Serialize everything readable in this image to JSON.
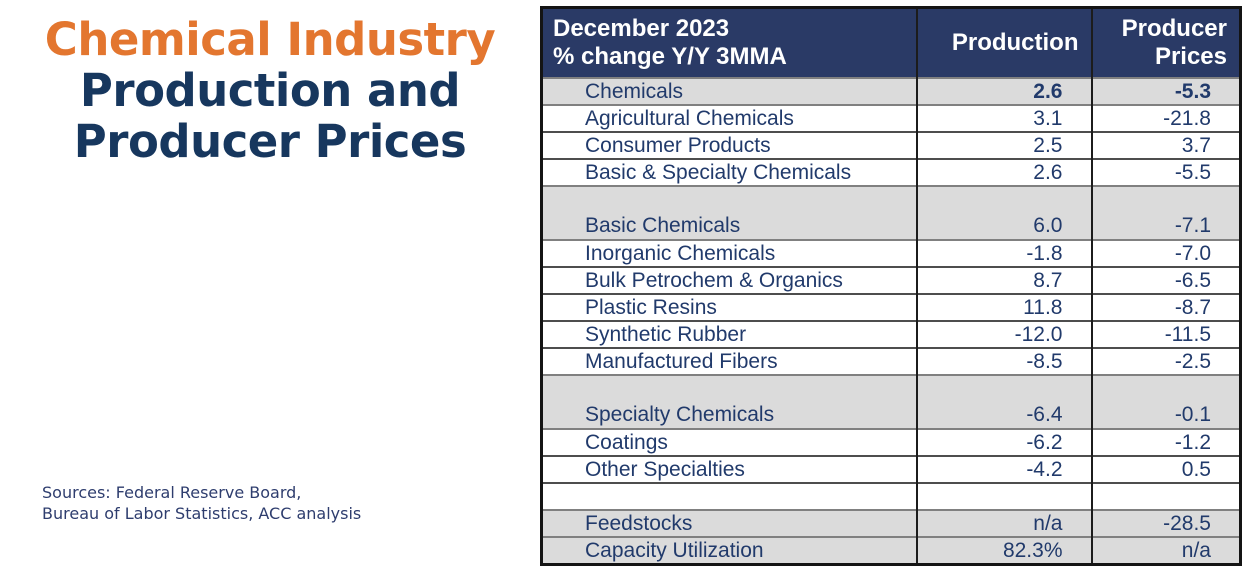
{
  "page": {
    "title_line1": "Chemical Industry",
    "title_line2": "Production and",
    "title_line3": "Producer Prices",
    "sources_line1": "Sources:  Federal Reserve Board,",
    "sources_line2": "Bureau of Labor Statistics, ACC analysis"
  },
  "colors": {
    "accent_orange": "#E3762F",
    "title_navy": "#17375E",
    "table_header_bg": "#2A3A66",
    "table_text_navy": "#213A6B",
    "row_gray": "#DBDBDB"
  },
  "table": {
    "header": {
      "period": "December 2023",
      "metric": "% change Y/Y 3MMA",
      "col_production": "Production",
      "col_producer_prices": "Producer\nPrices"
    },
    "rows": [
      {
        "label": "Chemicals",
        "production": "2.6",
        "producer_prices": "-5.3"
      },
      {
        "label": "Agricultural Chemicals",
        "production": "3.1",
        "producer_prices": "-21.8"
      },
      {
        "label": "Consumer Products",
        "production": "2.5",
        "producer_prices": "3.7"
      },
      {
        "label": "Basic & Specialty Chemicals",
        "production": "2.6",
        "producer_prices": "-5.5"
      },
      {
        "label": "Basic Chemicals",
        "production": "6.0",
        "producer_prices": "-7.1"
      },
      {
        "label": "Inorganic Chemicals",
        "production": "-1.8",
        "producer_prices": "-7.0"
      },
      {
        "label": "Bulk Petrochem & Organics",
        "production": "8.7",
        "producer_prices": "-6.5"
      },
      {
        "label": "Plastic Resins",
        "production": "11.8",
        "producer_prices": "-8.7"
      },
      {
        "label": "Synthetic Rubber",
        "production": "-12.0",
        "producer_prices": "-11.5"
      },
      {
        "label": "Manufactured Fibers",
        "production": "-8.5",
        "producer_prices": "-2.5"
      },
      {
        "label": "Specialty Chemicals",
        "production": "-6.4",
        "producer_prices": "-0.1"
      },
      {
        "label": "Coatings",
        "production": "-6.2",
        "producer_prices": "-1.2"
      },
      {
        "label": "Other Specialties",
        "production": "-4.2",
        "producer_prices": "0.5"
      },
      {
        "label": "",
        "production": "",
        "producer_prices": ""
      },
      {
        "label": "Feedstocks",
        "production": "n/a",
        "producer_prices": "-28.5"
      },
      {
        "label": "Capacity Utilization",
        "production": "82.3%",
        "producer_prices": "n/a"
      }
    ]
  },
  "chart_data": {
    "type": "table",
    "title": "Chemical Industry Production and Producer Prices",
    "subtitle": "December 2023 % change Y/Y 3MMA",
    "columns": [
      "Category",
      "Production",
      "Producer Prices"
    ],
    "rows": [
      {
        "label": "Chemicals",
        "production": 2.6,
        "producer_prices": -5.3,
        "emphasis": true
      },
      {
        "label": "Agricultural Chemicals",
        "production": 3.1,
        "producer_prices": -21.8
      },
      {
        "label": "Consumer Products",
        "production": 2.5,
        "producer_prices": 3.7
      },
      {
        "label": "Basic & Specialty Chemicals",
        "production": 2.6,
        "producer_prices": -5.5
      },
      {
        "label": "Basic Chemicals",
        "production": 6.0,
        "producer_prices": -7.1
      },
      {
        "label": "Inorganic Chemicals",
        "production": -1.8,
        "producer_prices": -7.0
      },
      {
        "label": "Bulk Petrochem & Organics",
        "production": 8.7,
        "producer_prices": -6.5
      },
      {
        "label": "Plastic Resins",
        "production": 11.8,
        "producer_prices": -8.7
      },
      {
        "label": "Synthetic Rubber",
        "production": -12.0,
        "producer_prices": -11.5
      },
      {
        "label": "Manufactured Fibers",
        "production": -8.5,
        "producer_prices": -2.5
      },
      {
        "label": "Specialty Chemicals",
        "production": -6.4,
        "producer_prices": -0.1
      },
      {
        "label": "Coatings",
        "production": -6.2,
        "producer_prices": -1.2
      },
      {
        "label": "Other Specialties",
        "production": -4.2,
        "producer_prices": 0.5
      },
      {
        "label": "Feedstocks",
        "production": "n/a",
        "producer_prices": -28.5
      },
      {
        "label": "Capacity Utilization",
        "production": "82.3%",
        "producer_prices": "n/a"
      }
    ],
    "notes": "Sources: Federal Reserve Board, Bureau of Labor Statistics, ACC analysis"
  }
}
